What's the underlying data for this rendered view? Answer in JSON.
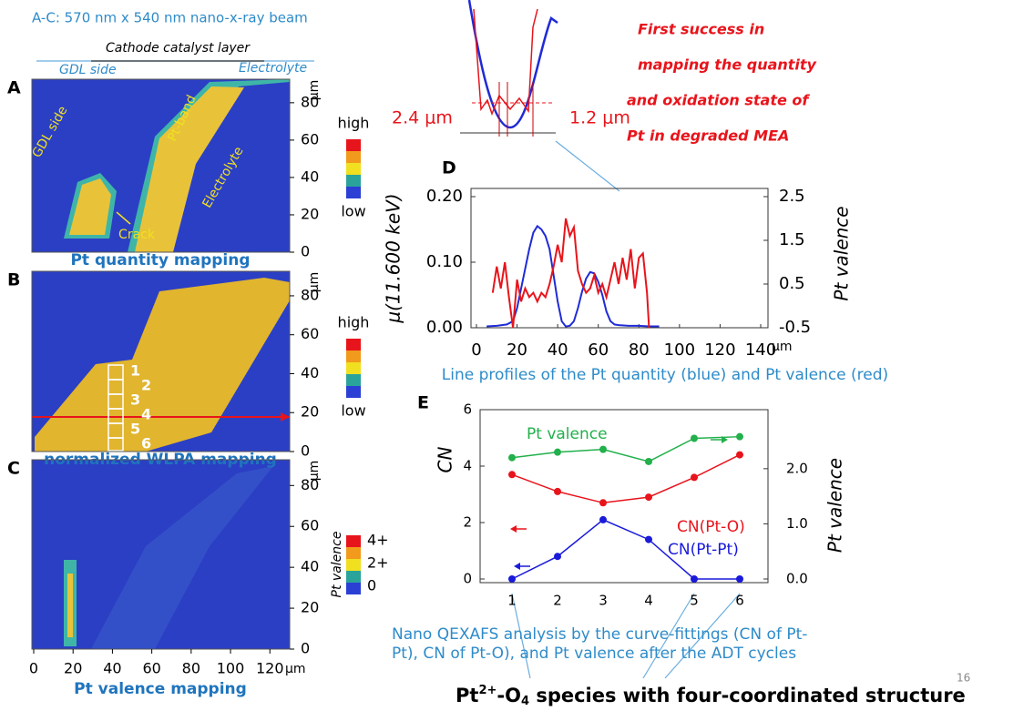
{
  "header": {
    "beam": "A-C:  570 nm x 540 nm nano-x-ray beam",
    "headline": [
      "First success in",
      "mapping the quantity",
      "and oxidation state of",
      "Pt in degraded MEA"
    ]
  },
  "layer_labels": {
    "cathode": "Cathode catalyst layer",
    "gdl": "GDL side",
    "electrolyte": "Electrolyte"
  },
  "map_axes": {
    "unit": "μm",
    "ylim": [
      0,
      92.6
    ],
    "yticks": [
      0,
      20,
      40,
      60,
      80
    ],
    "xlim": [
      0,
      131
    ],
    "xticks": [
      0,
      20,
      40,
      60,
      80,
      100,
      120
    ]
  },
  "maps": [
    {
      "letter": "A",
      "caption": "Pt quantity mapping",
      "annotations": [
        "GDL side",
        "Pt-band",
        "Electrolyte",
        "Crack"
      ],
      "legend": [
        "high",
        "low"
      ]
    },
    {
      "letter": "B",
      "caption": "normalized WLPA mapping",
      "points": [
        "1",
        "2",
        "3",
        "4",
        "5",
        "6"
      ],
      "legend": [
        "high",
        "low"
      ]
    },
    {
      "letter": "C",
      "caption": "Pt valence mapping",
      "legend_title": "Pt valence",
      "legend": [
        "4+",
        "2+",
        "0"
      ]
    }
  ],
  "inset": {
    "left": "2.4 μm",
    "right": "1.2 μm"
  },
  "chart_data": [
    {
      "type": "line",
      "letter": "D",
      "ylabel": "μ(11.600 keV)",
      "y2label": "Pt valence",
      "xlabel": "μm",
      "caption": "Line profiles of the Pt quantity (blue) and Pt valence (red)",
      "xlim": [
        0,
        140
      ],
      "xticks": [
        0,
        20,
        40,
        60,
        80,
        100,
        120,
        140
      ],
      "ylim": [
        0,
        0.2
      ],
      "yticks": [
        {
          "value": 0,
          "label": "0.00"
        },
        {
          "value": 0.1,
          "label": "0.10"
        },
        {
          "value": 0.2,
          "label": "0.20"
        }
      ],
      "y2lim": [
        -0.5,
        2.5
      ],
      "y2ticks": [
        -0.5,
        0.5,
        1.5,
        2.5
      ],
      "markers": false,
      "series": [
        {
          "color": "#1f2bd6",
          "x": [
            5,
            10,
            15,
            18,
            20,
            22,
            24,
            26,
            28,
            30,
            32,
            34,
            36,
            38,
            40,
            42,
            44,
            46,
            48,
            50,
            52,
            54,
            56,
            58,
            60,
            62,
            64,
            66,
            68,
            70,
            75,
            80,
            85,
            90
          ],
          "values": [
            0.002,
            0.003,
            0.005,
            0.01,
            0.03,
            0.06,
            0.09,
            0.12,
            0.145,
            0.155,
            0.15,
            0.14,
            0.12,
            0.08,
            0.04,
            0.01,
            0.002,
            0.003,
            0.01,
            0.03,
            0.055,
            0.075,
            0.085,
            0.083,
            0.07,
            0.05,
            0.025,
            0.01,
            0.005,
            0.004,
            0.003,
            0.003,
            0.002,
            0.002
          ]
        },
        {
          "color": "#e8141b",
          "axis": "y2",
          "x": [
            8,
            10,
            12,
            14,
            16,
            18,
            20,
            22,
            24,
            26,
            28,
            30,
            32,
            34,
            36,
            38,
            40,
            42,
            44,
            46,
            48,
            50,
            52,
            54,
            56,
            58,
            60,
            62,
            64,
            66,
            68,
            70,
            72,
            74,
            76,
            78,
            80,
            82,
            84,
            85
          ],
          "values": [
            0.3,
            0.9,
            0.4,
            1.0,
            0.2,
            -0.5,
            0.6,
            0.1,
            0.4,
            0.2,
            0.3,
            0.1,
            0.3,
            0.2,
            0.5,
            0.9,
            1.4,
            1.0,
            2.0,
            1.6,
            1.8,
            0.8,
            0.5,
            0.3,
            0.4,
            0.7,
            0.3,
            0.5,
            0.2,
            0.6,
            1.0,
            0.5,
            1.1,
            0.6,
            1.3,
            0.4,
            1.1,
            1.2,
            0.3,
            -0.5
          ]
        }
      ]
    },
    {
      "type": "line",
      "letter": "E",
      "ylabel": "CN",
      "y2label": "Pt valence",
      "caption": [
        "Nano QEXAFS analysis by the curve-fittings (CN of Pt-",
        "Pt), CN of Pt-O), and Pt valence after the ADT cycles"
      ],
      "categories": [
        "1",
        "2",
        "3",
        "4",
        "5",
        "6"
      ],
      "ylim": [
        0,
        6
      ],
      "yticks": [
        0,
        2,
        4,
        6
      ],
      "y2lim": [
        0,
        3.07
      ],
      "y2ticks": [
        {
          "value": 0,
          "label": "0.0"
        },
        {
          "value": 1,
          "label": "1.0"
        },
        {
          "value": 2,
          "label": "2.0"
        }
      ],
      "markers": true,
      "series": [
        {
          "name": "Pt valence",
          "color": "#22b04b",
          "axis": "y2",
          "values": [
            2.2,
            2.3,
            2.35,
            2.13,
            2.55,
            2.58
          ]
        },
        {
          "name": "CN(Pt-O)",
          "color": "#e8141b",
          "values": [
            3.7,
            3.1,
            2.7,
            2.9,
            3.6,
            4.4
          ]
        },
        {
          "name": "CN(Pt-Pt)",
          "color": "#1a1adb",
          "values": [
            0,
            0.8,
            2.1,
            1.4,
            0,
            0
          ]
        }
      ]
    }
  ],
  "footer": {
    "pt": "Pt",
    "charge": "2+",
    "o": "-O",
    "count": "4",
    "rest": " species with four-coordinated structure"
  },
  "page_number": "16"
}
